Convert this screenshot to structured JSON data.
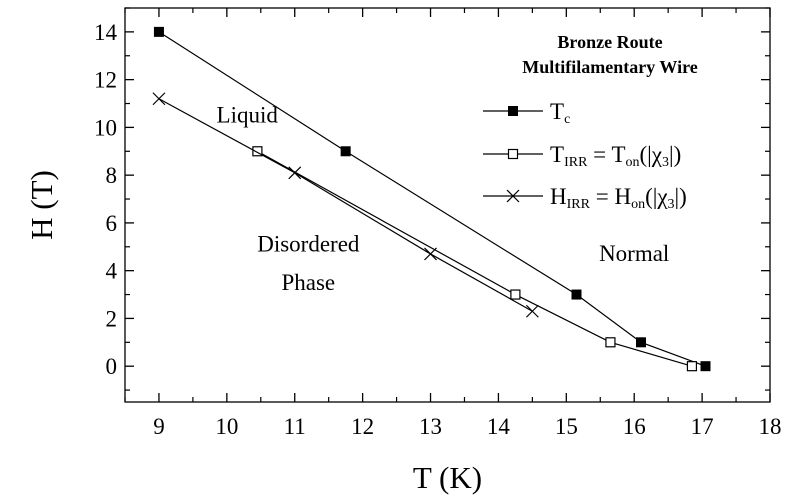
{
  "chart_data": {
    "type": "line",
    "xlabel": "T (K)",
    "ylabel": "H (T)",
    "xlim": [
      8.5,
      18
    ],
    "ylim": [
      -1.5,
      15
    ],
    "x_ticks": [
      9,
      10,
      11,
      12,
      13,
      14,
      15,
      16,
      17,
      18
    ],
    "y_ticks": [
      0,
      2,
      4,
      6,
      8,
      10,
      12,
      14
    ],
    "legend_position": "top-right",
    "legend_title": [
      "Bronze  Route",
      "Multifilamentary Wire"
    ],
    "series": [
      {
        "name": "T_c",
        "label_main": "T",
        "label_sub": "c",
        "label_rest": "",
        "marker": "filled-square",
        "x": [
          9.0,
          11.75,
          15.15,
          16.1,
          17.05
        ],
        "y": [
          14.0,
          9.0,
          3.0,
          1.0,
          0.0
        ]
      },
      {
        "name": "T_IRR = T_on(|χ3|)",
        "label_main": "T",
        "label_sub": "IRR",
        "label_mid": " = T",
        "label_sub2": "on",
        "label_pre3": "(|χ",
        "label_sub3": "3",
        "label_end": "|)",
        "marker": "open-square",
        "x": [
          10.45,
          14.25,
          15.65,
          16.85
        ],
        "y": [
          9.0,
          3.0,
          1.0,
          0.0
        ]
      },
      {
        "name": "H_IRR = H_on(|χ3|)",
        "label_main": "H",
        "label_sub": "IRR",
        "label_mid": " = H",
        "label_sub2": "on",
        "label_pre3": "(|χ",
        "label_sub3": "3",
        "label_end": "|)",
        "marker": "cross",
        "x": [
          9.0,
          11.0,
          13.0,
          14.5
        ],
        "y": [
          11.2,
          8.1,
          4.7,
          2.3
        ]
      }
    ],
    "annotations": [
      {
        "text": "Liquid",
        "x": 10.3,
        "y": 10.2
      },
      {
        "text": "Disordered",
        "x": 11.2,
        "y": 4.8
      },
      {
        "text": "Phase",
        "x": 11.2,
        "y": 3.2
      },
      {
        "text": "Normal",
        "x": 16.0,
        "y": 4.4
      }
    ]
  }
}
